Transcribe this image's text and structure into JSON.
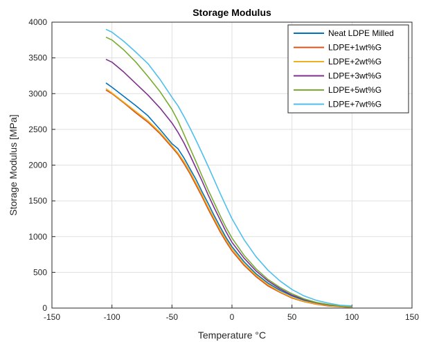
{
  "chart_data": {
    "type": "line",
    "title": "Storage Modulus",
    "xlabel": "Temperature °C",
    "ylabel": "Storage Modulus [MPa]",
    "xlim": [
      -150,
      150
    ],
    "ylim": [
      0,
      4000
    ],
    "xticks": [
      -150,
      -100,
      -50,
      0,
      50,
      100,
      150
    ],
    "yticks": [
      0,
      500,
      1000,
      1500,
      2000,
      2500,
      3000,
      3500,
      4000
    ],
    "grid": true,
    "legend_position": "top-right",
    "series": [
      {
        "name": "Neat LDPE Milled",
        "color": "#0072BD",
        "x": [
          -105,
          -100,
          -90,
          -80,
          -70,
          -60,
          -50,
          -45,
          -40,
          -35,
          -30,
          -25,
          -20,
          -15,
          -10,
          -5,
          0,
          10,
          20,
          30,
          40,
          50,
          60,
          70,
          80,
          90,
          100
        ],
        "y": [
          3150,
          3090,
          2960,
          2830,
          2690,
          2500,
          2300,
          2230,
          2100,
          1950,
          1800,
          1630,
          1470,
          1300,
          1140,
          990,
          860,
          650,
          480,
          350,
          250,
          170,
          110,
          70,
          40,
          25,
          18
        ]
      },
      {
        "name": "LDPE+1wt%G",
        "color": "#D95319",
        "x": [
          -105,
          -100,
          -90,
          -80,
          -70,
          -60,
          -50,
          -45,
          -40,
          -35,
          -30,
          -25,
          -20,
          -15,
          -10,
          -5,
          0,
          10,
          20,
          30,
          40,
          50,
          60,
          70,
          80,
          90,
          100
        ],
        "y": [
          3050,
          3000,
          2870,
          2730,
          2600,
          2440,
          2250,
          2150,
          2020,
          1880,
          1720,
          1560,
          1390,
          1230,
          1070,
          930,
          800,
          600,
          440,
          310,
          220,
          140,
          90,
          55,
          30,
          18,
          10
        ]
      },
      {
        "name": "LDPE+2wt%G",
        "color": "#EDB120",
        "x": [
          -105,
          -100,
          -90,
          -80,
          -70,
          -60,
          -50,
          -45,
          -40,
          -35,
          -30,
          -25,
          -20,
          -15,
          -10,
          -5,
          0,
          10,
          20,
          30,
          40,
          50,
          60,
          70,
          80,
          90,
          100
        ],
        "y": [
          3070,
          3010,
          2880,
          2750,
          2620,
          2460,
          2270,
          2170,
          2050,
          1910,
          1750,
          1590,
          1420,
          1260,
          1100,
          960,
          830,
          620,
          460,
          330,
          230,
          150,
          95,
          60,
          35,
          20,
          12
        ]
      },
      {
        "name": "LDPE+3wt%G",
        "color": "#7E2F8E",
        "x": [
          -105,
          -100,
          -90,
          -80,
          -70,
          -60,
          -50,
          -45,
          -40,
          -35,
          -30,
          -25,
          -20,
          -15,
          -10,
          -5,
          0,
          10,
          20,
          30,
          40,
          50,
          60,
          70,
          80,
          90,
          100
        ],
        "y": [
          3480,
          3440,
          3300,
          3140,
          2980,
          2800,
          2590,
          2460,
          2310,
          2140,
          1960,
          1780,
          1590,
          1410,
          1240,
          1070,
          920,
          700,
          520,
          380,
          270,
          180,
          120,
          75,
          45,
          28,
          18
        ]
      },
      {
        "name": "LDPE+5wt%G",
        "color": "#77AC30",
        "x": [
          -105,
          -100,
          -90,
          -80,
          -70,
          -60,
          -50,
          -45,
          -40,
          -35,
          -30,
          -25,
          -20,
          -15,
          -10,
          -5,
          0,
          10,
          20,
          30,
          40,
          50,
          60,
          70,
          80,
          90,
          100
        ],
        "y": [
          3790,
          3750,
          3610,
          3440,
          3240,
          3030,
          2780,
          2620,
          2430,
          2240,
          2050,
          1850,
          1660,
          1480,
          1300,
          1130,
          980,
          740,
          550,
          400,
          290,
          200,
          130,
          80,
          50,
          30,
          20
        ]
      },
      {
        "name": "LDPE+7wt%G",
        "color": "#4DBEEE",
        "x": [
          -105,
          -100,
          -90,
          -80,
          -70,
          -60,
          -50,
          -45,
          -40,
          -35,
          -30,
          -25,
          -20,
          -15,
          -10,
          -5,
          0,
          10,
          20,
          30,
          40,
          50,
          60,
          70,
          80,
          90,
          100
        ],
        "y": [
          3900,
          3860,
          3730,
          3580,
          3420,
          3200,
          2950,
          2830,
          2680,
          2520,
          2350,
          2170,
          1990,
          1800,
          1610,
          1430,
          1250,
          960,
          720,
          530,
          380,
          260,
          170,
          110,
          70,
          40,
          30
        ]
      }
    ]
  }
}
